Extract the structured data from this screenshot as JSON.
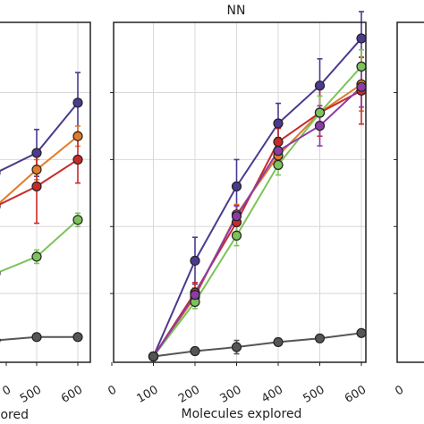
{
  "chart_data": [
    {
      "type": "line",
      "title": "",
      "xlabel": "...ored",
      "x_tick_labels": [
        "0",
        "500",
        "600"
      ],
      "xlim": [
        0,
        650
      ],
      "ylim": [
        0,
        1
      ],
      "grid": true,
      "series": [
        {
          "color": "#4b3a8f",
          "points": [
            [
              400,
              0.56
            ],
            [
              500,
              0.62
            ],
            [
              600,
              0.77
            ]
          ],
          "err": [
            0,
            0.07,
            0.09
          ]
        },
        {
          "color": "#e07b28",
          "points": [
            [
              400,
              0.46
            ],
            [
              500,
              0.57
            ],
            [
              600,
              0.67
            ]
          ],
          "err": [
            0,
            0.03,
            0.03
          ]
        },
        {
          "color": "#c82a2a",
          "points": [
            [
              400,
              0.46
            ],
            [
              500,
              0.52
            ],
            [
              600,
              0.6
            ]
          ],
          "err": [
            0,
            0.11,
            0.07
          ]
        },
        {
          "color": "#7cc35a",
          "points": [
            [
              400,
              0.26
            ],
            [
              500,
              0.31
            ],
            [
              600,
              0.42
            ]
          ],
          "err": [
            0,
            0.02,
            0.02
          ]
        },
        {
          "color": "#555555",
          "points": [
            [
              400,
              0.06
            ],
            [
              500,
              0.07
            ],
            [
              600,
              0.07
            ]
          ],
          "err": [
            0,
            0.01,
            0.01
          ]
        }
      ]
    },
    {
      "type": "line",
      "title": "NN",
      "xlabel": "Molecules explored",
      "x_tick_labels": [
        "0",
        "100",
        "200",
        "300",
        "400",
        "500",
        "600"
      ],
      "x_ticks": [
        0,
        100,
        200,
        300,
        400,
        500,
        600
      ],
      "xlim": [
        -30,
        620
      ],
      "ylim": [
        0,
        1
      ],
      "grid": true,
      "series": [
        {
          "color": "#4b3a8f",
          "points": [
            [
              100,
              0.012
            ],
            [
              200,
              0.298
            ],
            [
              300,
              0.52
            ],
            [
              400,
              0.708
            ],
            [
              500,
              0.821
            ],
            [
              600,
              0.962
            ]
          ],
          "err": [
            0,
            0.07,
            0.08,
            0.06,
            0.08,
            0.08
          ]
        },
        {
          "color": "#e07b28",
          "points": [
            [
              100,
              0.012
            ],
            [
              200,
              0.19
            ],
            [
              300,
              0.436
            ],
            [
              400,
              0.612
            ],
            [
              500,
              0.74
            ],
            [
              600,
              0.825
            ]
          ],
          "err": [
            0,
            0.02,
            0.03,
            0.04,
            0.05,
            0.08
          ]
        },
        {
          "color": "#c82a2a",
          "points": [
            [
              100,
              0.012
            ],
            [
              200,
              0.203
            ],
            [
              300,
              0.413
            ],
            [
              400,
              0.653
            ],
            [
              500,
              0.74
            ],
            [
              600,
              0.806
            ]
          ],
          "err": [
            0,
            0.03,
            0.05,
            0.04,
            0.07,
            0.1
          ]
        },
        {
          "color": "#7cc35a",
          "points": [
            [
              100,
              0.012
            ],
            [
              200,
              0.175
            ],
            [
              300,
              0.373
            ],
            [
              400,
              0.584
            ],
            [
              500,
              0.74
            ],
            [
              600,
              0.878
            ]
          ],
          "err": [
            0,
            0.02,
            0.03,
            0.03,
            0.05,
            0.05
          ]
        },
        {
          "color": "#8a3da8",
          "points": [
            [
              100,
              0.012
            ],
            [
              200,
              0.196
            ],
            [
              300,
              0.431
            ],
            [
              400,
              0.626
            ],
            [
              500,
              0.701
            ],
            [
              600,
              0.817
            ]
          ],
          "err": [
            0,
            0.02,
            0.03,
            0.04,
            0.06,
            0.06
          ]
        },
        {
          "color": "#555555",
          "points": [
            [
              100,
              0.012
            ],
            [
              200,
              0.028
            ],
            [
              300,
              0.04
            ],
            [
              400,
              0.055
            ],
            [
              500,
              0.066
            ],
            [
              600,
              0.082
            ]
          ],
          "err": [
            0,
            0.01,
            0.02,
            0.01,
            0.01,
            0.01
          ]
        }
      ]
    },
    {
      "type": "line",
      "title": "",
      "xlabel": "",
      "x_tick_labels": [
        "0"
      ],
      "xlim": [
        0,
        650
      ],
      "ylim": [
        0,
        1
      ],
      "grid": false,
      "series": []
    }
  ]
}
